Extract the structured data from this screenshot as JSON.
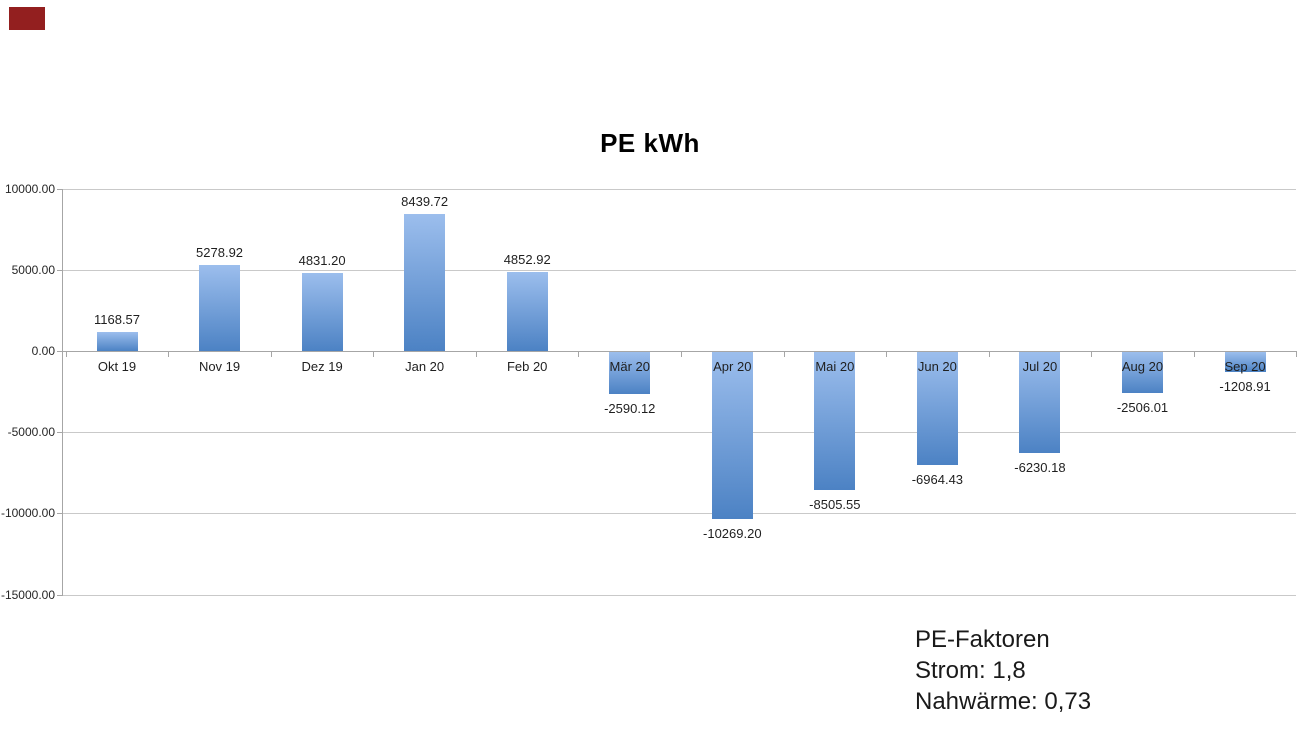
{
  "decoration": {
    "corner_marker_color": "#931f1f"
  },
  "chart_data": {
    "type": "bar",
    "title": "PE kWh",
    "categories": [
      "Okt 19",
      "Nov 19",
      "Dez 19",
      "Jan 20",
      "Feb 20",
      "Mär 20",
      "Apr 20",
      "Mai 20",
      "Jun 20",
      "Jul 20",
      "Aug 20",
      "Sep 20"
    ],
    "values": [
      1168.57,
      5278.92,
      4831.2,
      8439.72,
      4852.92,
      -2590.12,
      -10269.2,
      -8505.55,
      -6964.43,
      -6230.18,
      -2506.01,
      -1208.91
    ],
    "value_labels": [
      "1168.57",
      "5278.92",
      "4831.20",
      "8439.72",
      "4852.92",
      "-2590.12",
      "-10269.20",
      "-8505.55",
      "-6964.43",
      "-6230.18",
      "-2506.01",
      "-1208.91"
    ],
    "y_ticks": [
      {
        "label": "10000.00",
        "value": 10000
      },
      {
        "label": "5000.00",
        "value": 5000
      },
      {
        "label": "0.00",
        "value": 0
      },
      {
        "label": "-5000.00",
        "value": -5000
      },
      {
        "label": "-10000.00",
        "value": -10000
      },
      {
        "label": "-15000.00",
        "value": -15000
      }
    ],
    "ylim": [
      -15000,
      10000
    ],
    "xlabel": "",
    "ylabel": "",
    "legend": "none",
    "grid": "horizontal",
    "bar_color_top": "#9cbeed",
    "bar_color_bottom": "#4c82c4",
    "gridline_color": "#c9c9c9",
    "axis_color": "#a6a6a6"
  },
  "annotation": {
    "lines": [
      "PE-Faktoren",
      "Strom: 1,8",
      "Nahwärme: 0,73"
    ]
  }
}
